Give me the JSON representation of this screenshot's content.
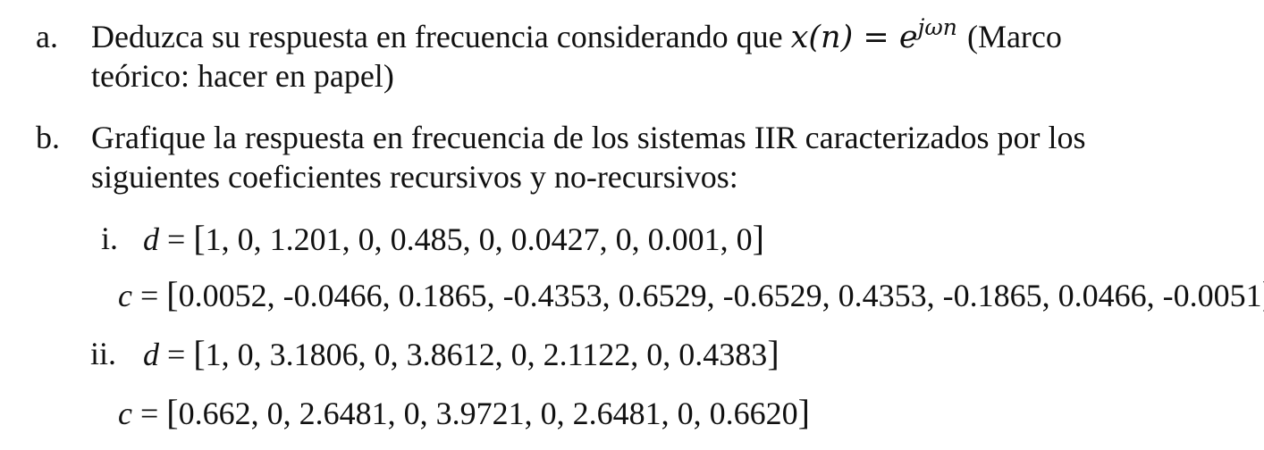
{
  "items": [
    {
      "marker": "a.",
      "line1_text": "Deduzca su respuesta en frecuencia considerando que",
      "math_lhs": "x(n)",
      "math_eq": "=",
      "math_base": "e",
      "math_exp": "jωn",
      "line1_tail": "(Marco",
      "line2_text": "teórico: hacer en papel)"
    },
    {
      "marker": "b.",
      "line1_text": "Grafique la respuesta en frecuencia de los sistemas IIR caracterizados por los",
      "line2_text": "siguientes coeficientes recursivos y no-recursivos:"
    }
  ],
  "subitems": [
    {
      "marker": "i.",
      "d_label": "d",
      "d_values": "1, 0, 1.201, 0, 0.485, 0, 0.0427, 0, 0.001, 0",
      "c_label": "c",
      "c_values": "0.0052, -0.0466, 0.1865, -0.4353, 0.6529, -0.6529, 0.4353, -0.1865, 0.0466, -0.0051"
    },
    {
      "marker": "ii.",
      "d_label": "d",
      "d_values": "1, 0, 3.1806, 0, 3.8612, 0, 2.1122, 0, 0.4383",
      "c_label": "c",
      "c_values": "0.662, 0, 2.6481, 0, 3.9721, 0, 2.6481, 0, 0.6620"
    }
  ],
  "symbols": {
    "equals": "=",
    "open_bracket": "[",
    "close_bracket": "]"
  }
}
